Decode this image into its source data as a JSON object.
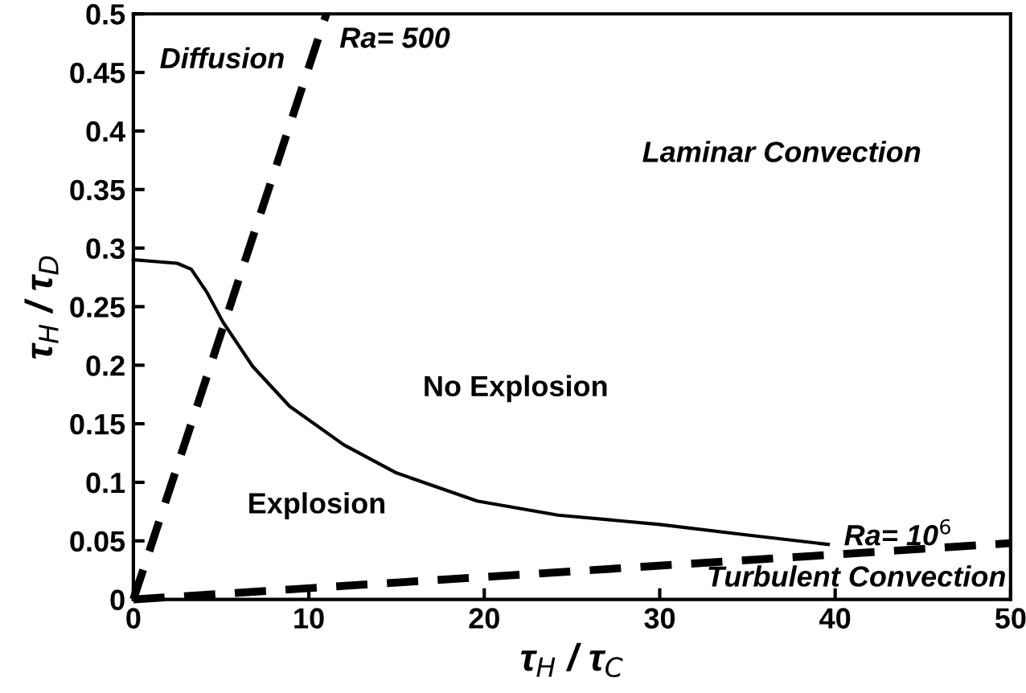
{
  "chart_data": {
    "type": "line",
    "xlabel": "τ$_{H}$ / τ$_{C}$",
    "ylabel": "τ$_{H}$ / τ$_{D}$",
    "xlim": [
      0,
      50
    ],
    "xticks": [
      0,
      10,
      20,
      30,
      40,
      50
    ],
    "ylim": [
      0,
      0.5
    ],
    "yticks": [
      0,
      0.05,
      0.1,
      0.15,
      0.2,
      0.25,
      0.3,
      0.35,
      0.4,
      0.45,
      0.5
    ],
    "grid": false,
    "legend": false,
    "series": [
      {
        "color": "#000000",
        "line_style": "solid",
        "x": [
          0,
          2.5,
          3.3,
          4.2,
          5.1,
          6.8,
          8.9,
          12.0,
          15.0,
          19.6,
          24.2,
          30,
          35,
          39.6
        ],
        "values": [
          0.29,
          0.287,
          0.282,
          0.262,
          0.237,
          0.199,
          0.165,
          0.132,
          0.108,
          0.084,
          0.072,
          0.064,
          0.055,
          0.047
        ]
      },
      {
        "color": "#000000",
        "line_style": "dashed",
        "x": [
          0,
          11.0
        ],
        "values": [
          0,
          0.5
        ]
      },
      {
        "color": "#000000",
        "line_style": "dashed",
        "x": [
          0,
          50
        ],
        "values": [
          0,
          0.048
        ]
      }
    ],
    "annotations": [
      "Ra= 500",
      "Ra= 10$^{6}$",
      "Diffusion",
      "Laminar Convection",
      "No Explosion",
      "Explosion",
      "Turbulent Convection"
    ]
  }
}
